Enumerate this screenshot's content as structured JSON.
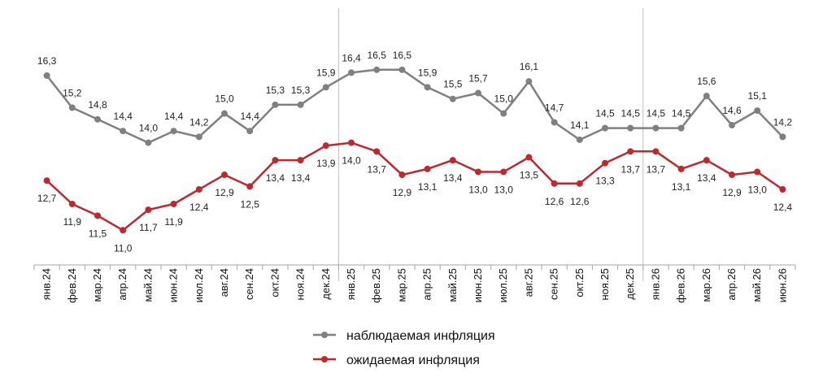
{
  "chart_data": {
    "type": "line",
    "categories": [
      "янв.24",
      "фев.24",
      "мар.24",
      "апр.24",
      "май.24",
      "июн.24",
      "июл.24",
      "авг.24",
      "сен.24",
      "окт.24",
      "ноя.24",
      "дек.24",
      "янв.25",
      "фев.25",
      "мар.25",
      "апр.25",
      "май.25",
      "июн.25",
      "июл.25",
      "авг.25",
      "сен.25",
      "окт.25",
      "ноя.25",
      "дек.25",
      "янв.26",
      "фев.26",
      "мар.26",
      "апр.26",
      "май.26",
      "июн.26"
    ],
    "series": [
      {
        "name": "наблюдаемая инфляция",
        "color": "#808080",
        "values": [
          16.3,
          15.2,
          14.8,
          14.4,
          14.0,
          14.4,
          14.2,
          15.0,
          14.4,
          15.3,
          15.3,
          15.9,
          16.4,
          16.5,
          16.5,
          15.9,
          15.5,
          15.7,
          15.0,
          16.1,
          14.7,
          14.1,
          14.5,
          14.5,
          14.5,
          14.5,
          15.6,
          14.6,
          15.1,
          14.2
        ],
        "labels": [
          "16,3",
          "15,2",
          "14,8",
          "14,4",
          "14,0",
          "14,4",
          "14,2",
          "15,0",
          "14,4",
          "15,3",
          "15,3",
          "15,9",
          "16,4",
          "16,5",
          "16,5",
          "15,9",
          "15,5",
          "15,7",
          "15,0",
          "16,1",
          "14,7",
          "14,1",
          "14,5",
          "14,5",
          "14,5",
          "14,5",
          "15,6",
          "14,6",
          "15,1",
          "14,2"
        ]
      },
      {
        "name": "ожидаемая инфляция",
        "color": "#C0282D",
        "values": [
          12.7,
          11.9,
          11.5,
          11.0,
          11.7,
          11.9,
          12.4,
          12.9,
          12.5,
          13.4,
          13.4,
          13.9,
          14.0,
          13.7,
          12.9,
          13.1,
          13.4,
          13.0,
          13.0,
          13.5,
          12.6,
          12.6,
          13.3,
          13.7,
          13.7,
          13.1,
          13.4,
          12.9,
          13.0,
          12.4
        ],
        "labels": [
          "12,7",
          "11,9",
          "11,5",
          "11,0",
          "11,7",
          "11,9",
          "12,4",
          "12,9",
          "12,5",
          "13,4",
          "13,4",
          "13,9",
          "14,0",
          "13,7",
          "12,9",
          "13,1",
          "13,4",
          "13,0",
          "13,0",
          "13,5",
          "12,6",
          "12,6",
          "13,3",
          "13,7",
          "13,7",
          "13,1",
          "13,4",
          "12,9",
          "13,0",
          "12,4"
        ]
      }
    ],
    "year_dividers_after": [
      "дек.24",
      "дек.25"
    ],
    "legend_position": "bottom-center",
    "grid": false
  }
}
